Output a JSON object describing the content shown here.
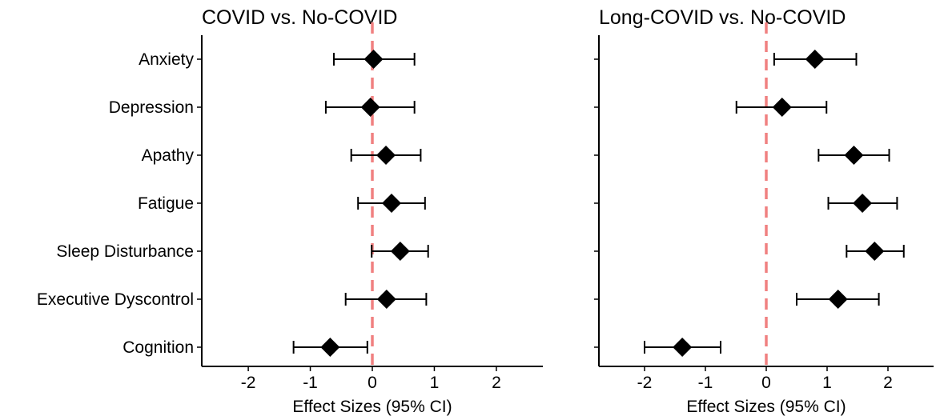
{
  "chart_data": [
    {
      "type": "scatter",
      "title": "COVID vs. No-COVID",
      "xlabel": "Effect Sizes (95% CI)",
      "ylabel": "",
      "categories": [
        "Anxiety",
        "Depression",
        "Apathy",
        "Fatigue",
        "Sleep Disturbance",
        "Executive Dyscontrol",
        "Cognition"
      ],
      "estimate": [
        0.02,
        -0.03,
        0.22,
        0.31,
        0.45,
        0.23,
        -0.68
      ],
      "ci_low": [
        -0.62,
        -0.75,
        -0.34,
        -0.23,
        -0.01,
        -0.43,
        -1.27
      ],
      "ci_high": [
        0.68,
        0.68,
        0.78,
        0.85,
        0.9,
        0.87,
        -0.08
      ],
      "xlim": [
        -2.75,
        2.75
      ],
      "xticks": [
        -2,
        -1,
        0,
        1,
        2
      ],
      "xtick_labels": [
        "-2",
        "-1",
        "0",
        "1",
        "2"
      ],
      "reference_line": 0,
      "grid": false,
      "marker": "diamond"
    },
    {
      "type": "scatter",
      "title": "Long-COVID vs. No-COVID",
      "xlabel": "Effect Sizes (95% CI)",
      "ylabel": "",
      "categories": [
        "Anxiety",
        "Depression",
        "Apathy",
        "Fatigue",
        "Sleep Disturbance",
        "Executive Dyscontrol",
        "Cognition"
      ],
      "estimate": [
        0.8,
        0.26,
        1.44,
        1.58,
        1.78,
        1.18,
        -1.38
      ],
      "ci_low": [
        0.13,
        -0.49,
        0.86,
        1.02,
        1.32,
        0.5,
        -2.0
      ],
      "ci_high": [
        1.48,
        0.99,
        2.02,
        2.15,
        2.26,
        1.85,
        -0.75
      ],
      "xlim": [
        -2.75,
        2.75
      ],
      "xticks": [
        -2,
        -1,
        0,
        1,
        2
      ],
      "xtick_labels": [
        "-2",
        "-1",
        "0",
        "1",
        "2"
      ],
      "reference_line": 0,
      "grid": false,
      "marker": "diamond"
    }
  ],
  "colors": {
    "marker": "#000000",
    "errorbar": "#000000",
    "axis": "#000000",
    "reference_line": "#F08080"
  }
}
